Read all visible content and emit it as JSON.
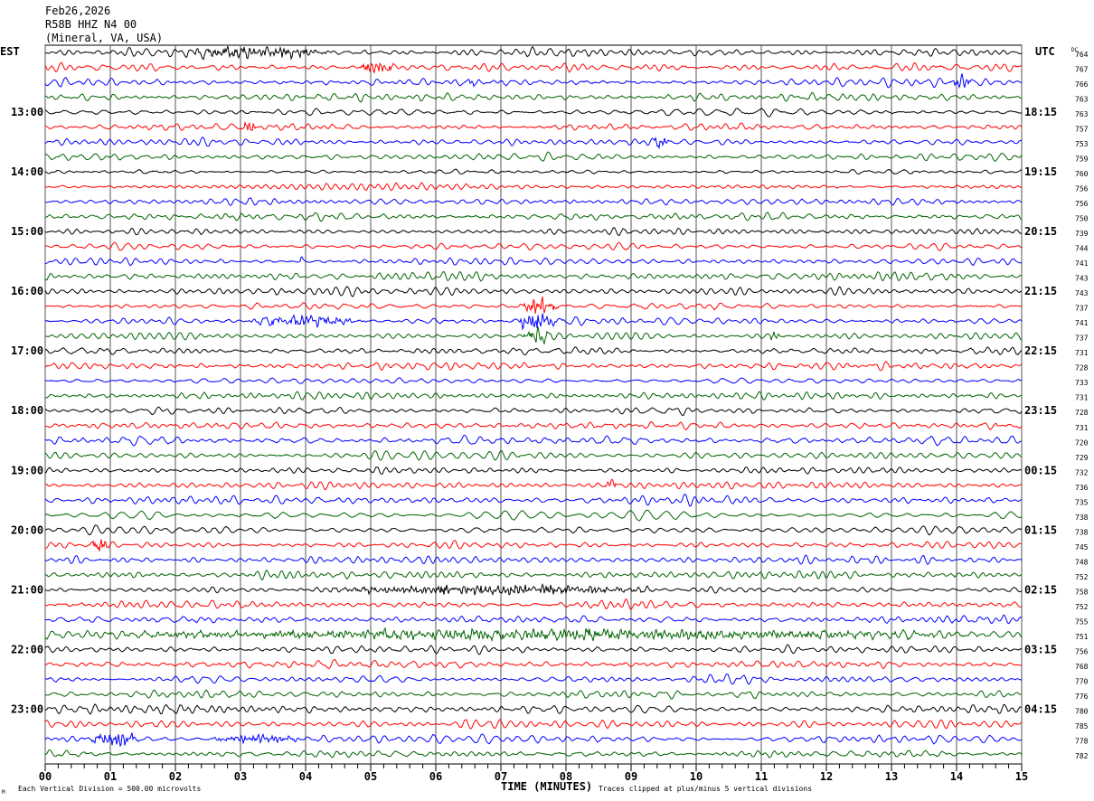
{
  "chart_data": {
    "type": "line",
    "title_lines": [
      "Feb26,2026",
      "R58B HHZ N4 00",
      "(Mineral, VA, USA)"
    ],
    "left_axis_title": "EST",
    "right_axis_title": "UTC",
    "dc_header": "DC",
    "xlabel": "TIME (MINUTES)",
    "xlim": [
      0,
      15
    ],
    "x_ticks": [
      "00",
      "01",
      "02",
      "03",
      "04",
      "05",
      "06",
      "07",
      "08",
      "09",
      "10",
      "11",
      "12",
      "13",
      "14",
      "15"
    ],
    "rows_per_hour": 4,
    "row_minutes": 15,
    "left_hour_labels": [
      "13:00",
      "14:00",
      "15:00",
      "16:00",
      "17:00",
      "18:00",
      "19:00",
      "20:00",
      "21:00",
      "22:00",
      "23:00"
    ],
    "right_hour_labels": [
      "18:15",
      "19:15",
      "20:15",
      "21:15",
      "22:15",
      "23:15",
      "00:15",
      "01:15",
      "02:15",
      "03:15",
      "04:15"
    ],
    "dc_values": [
      "764",
      "767",
      "766",
      "763",
      "763",
      "757",
      "753",
      "759",
      "760",
      "756",
      "756",
      "750",
      "739",
      "744",
      "741",
      "743",
      "743",
      "737",
      "741",
      "737",
      "731",
      "728",
      "733",
      "731",
      "728",
      "731",
      "720",
      "729",
      "732",
      "736",
      "735",
      "738",
      "738",
      "745",
      "748",
      "752",
      "758",
      "752",
      "755",
      "751",
      "756",
      "768",
      "770",
      "776",
      "780",
      "785",
      "778",
      "782"
    ],
    "trace_colors": [
      "#000000",
      "#ff0000",
      "#0000ff",
      "#006400"
    ],
    "clip_divisions": 5,
    "events": [
      {
        "row": 0,
        "start_min": 2.0,
        "end_min": 4.5,
        "amp": 1.8
      },
      {
        "row": 1,
        "start_min": 4.8,
        "end_min": 5.4,
        "amp": 2.0
      },
      {
        "row": 2,
        "start_min": 13.9,
        "end_min": 14.3,
        "amp": 2.6
      },
      {
        "row": 2,
        "start_min": 6.5,
        "end_min": 6.6,
        "amp": 2.0
      },
      {
        "row": 5,
        "start_min": 3.0,
        "end_min": 3.3,
        "amp": 1.8
      },
      {
        "row": 6,
        "start_min": 9.3,
        "end_min": 9.6,
        "amp": 1.8
      },
      {
        "row": 14,
        "start_min": 3.9,
        "end_min": 4.0,
        "amp": 2.5
      },
      {
        "row": 17,
        "start_min": 7.3,
        "end_min": 7.9,
        "amp": 3.0
      },
      {
        "row": 18,
        "start_min": 7.3,
        "end_min": 8.0,
        "amp": 5.0
      },
      {
        "row": 18,
        "start_min": 3.0,
        "end_min": 5.0,
        "amp": 1.6
      },
      {
        "row": 19,
        "start_min": 7.3,
        "end_min": 7.8,
        "amp": 2.5
      },
      {
        "row": 19,
        "start_min": 11.1,
        "end_min": 11.3,
        "amp": 1.8
      },
      {
        "row": 29,
        "start_min": 8.6,
        "end_min": 8.8,
        "amp": 2.8
      },
      {
        "row": 33,
        "start_min": 0.7,
        "end_min": 1.0,
        "amp": 2.2
      },
      {
        "row": 36,
        "start_min": 4.2,
        "end_min": 9.6,
        "amp": 1.7
      },
      {
        "row": 39,
        "start_min": 0.0,
        "end_min": 15.0,
        "amp": 1.5
      },
      {
        "row": 46,
        "start_min": 0.6,
        "end_min": 1.5,
        "amp": 2.5
      },
      {
        "row": 46,
        "start_min": 2.5,
        "end_min": 4.0,
        "amp": 1.5
      }
    ],
    "footer_left": "Each Vertical Division =  500.00 microvolts",
    "footer_right": "Traces clipped at plus/minus 5 vertical divisions",
    "corner_mark": "M"
  }
}
